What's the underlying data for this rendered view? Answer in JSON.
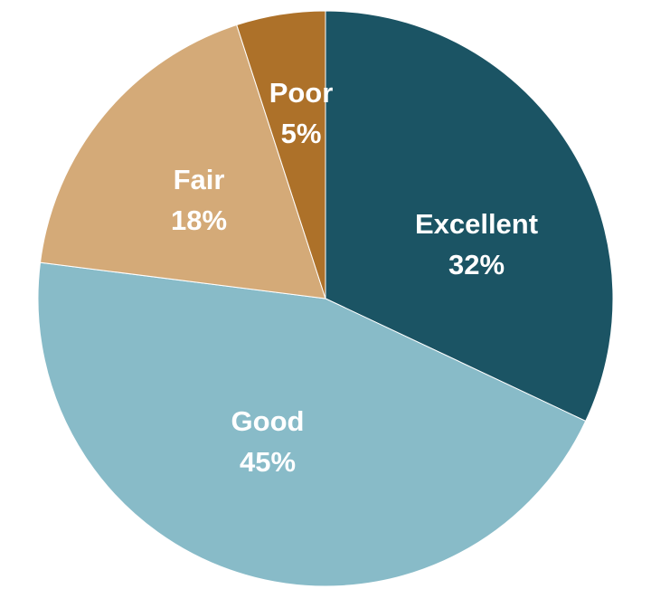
{
  "chart_data": {
    "type": "pie",
    "start": "top",
    "direction": "clockwise",
    "categories": [
      "Excellent",
      "Good",
      "Fair",
      "Poor"
    ],
    "values": [
      32,
      45,
      18,
      5
    ],
    "value_labels": [
      "32%",
      "45%",
      "18%",
      "5%"
    ],
    "colors": [
      "#1B5464",
      "#88BBC8",
      "#D4AA78",
      "#AD7129"
    ],
    "legend": "none",
    "title": ""
  }
}
